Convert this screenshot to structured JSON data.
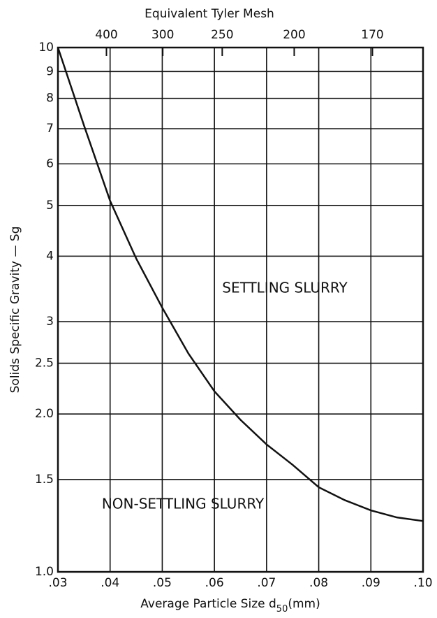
{
  "chart_data": {
    "type": "line",
    "log_y": true,
    "grid": true,
    "y_label": "Solids Specific Gravity — Sg",
    "x_label": {
      "text": "Average Particle Size d",
      "sub": "50",
      "unit": "(mm)"
    },
    "x2_label": "Equivalent Tyler Mesh",
    "annotations": [
      "SETTLING SLURRY",
      "NON-SETTLING SLURRY"
    ],
    "color": "#111111",
    "x": [
      0.03,
      0.035,
      0.04,
      0.045,
      0.05,
      0.055,
      0.06,
      0.065,
      0.07,
      0.075,
      0.08,
      0.085,
      0.09,
      0.095,
      0.1
    ],
    "values": [
      10,
      7.1,
      5.1,
      3.96,
      3.19,
      2.61,
      2.21,
      1.95,
      1.75,
      1.6,
      1.45,
      1.37,
      1.31,
      1.27,
      1.25
    ],
    "xlim": [
      0.03,
      0.1
    ],
    "xticks": [
      {
        "value": 0.03,
        "label": ".03"
      },
      {
        "value": 0.04,
        "label": ".04"
      },
      {
        "value": 0.05,
        "label": ".05"
      },
      {
        "value": 0.06,
        "label": ".06"
      },
      {
        "value": 0.07,
        "label": ".07"
      },
      {
        "value": 0.08,
        "label": ".08"
      },
      {
        "value": 0.09,
        "label": ".09"
      },
      {
        "value": 0.1,
        "label": ".10"
      }
    ],
    "x2ticks": [
      {
        "value": 0.0393,
        "label": "400"
      },
      {
        "value": 0.0501,
        "label": "300"
      },
      {
        "value": 0.0615,
        "label": "250"
      },
      {
        "value": 0.0753,
        "label": "200"
      },
      {
        "value": 0.0903,
        "label": "170"
      }
    ],
    "ylim": [
      1,
      10
    ],
    "yticks": [
      {
        "value": 1,
        "label": "1.0"
      },
      {
        "value": 1.5,
        "label": "1.5"
      },
      {
        "value": 2,
        "label": "2.0"
      },
      {
        "value": 2.5,
        "label": "2.5"
      },
      3,
      4,
      5,
      6,
      7,
      8,
      9,
      10
    ]
  }
}
